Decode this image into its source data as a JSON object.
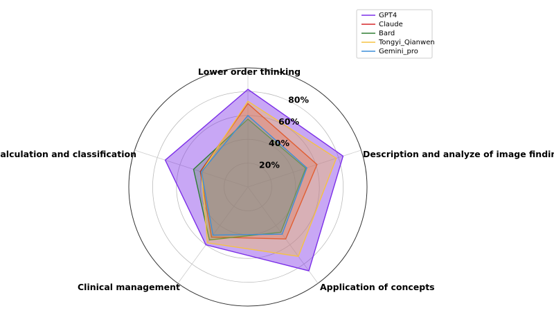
{
  "chart_data": {
    "type": "radar",
    "title": "",
    "axes": [
      "Lower order thinking",
      "Description and analyze of image findings",
      "Application of concepts",
      "Clinical management",
      "Calculation and classification"
    ],
    "rlim": [
      0,
      100
    ],
    "ticks": [
      {
        "value": 20,
        "label": "20%"
      },
      {
        "value": 40,
        "label": "40%"
      },
      {
        "value": 60,
        "label": "60%"
      },
      {
        "value": 80,
        "label": "80%"
      }
    ],
    "legend_position": "top-right",
    "series": [
      {
        "name": "GPT4",
        "color": "#7b2ee8",
        "fill_opacity": 0.42,
        "values": [
          82,
          84,
          87,
          60,
          73
        ]
      },
      {
        "name": "Claude",
        "color": "#d62728",
        "fill_opacity": 0.25,
        "values": [
          70,
          61,
          54,
          52,
          42
        ]
      },
      {
        "name": "Bard",
        "color": "#2e7d32",
        "fill_opacity": 0.25,
        "values": [
          57,
          51,
          47,
          55,
          48
        ]
      },
      {
        "name": "Tongyi_Qianwen",
        "color": "#f5c242",
        "fill_opacity": 0.35,
        "values": [
          72,
          78,
          72,
          58,
          41
        ]
      },
      {
        "name": "Gemini_pro",
        "color": "#3b8ed8",
        "fill_opacity": 0.2,
        "values": [
          60,
          52,
          49,
          50,
          41
        ]
      }
    ]
  }
}
